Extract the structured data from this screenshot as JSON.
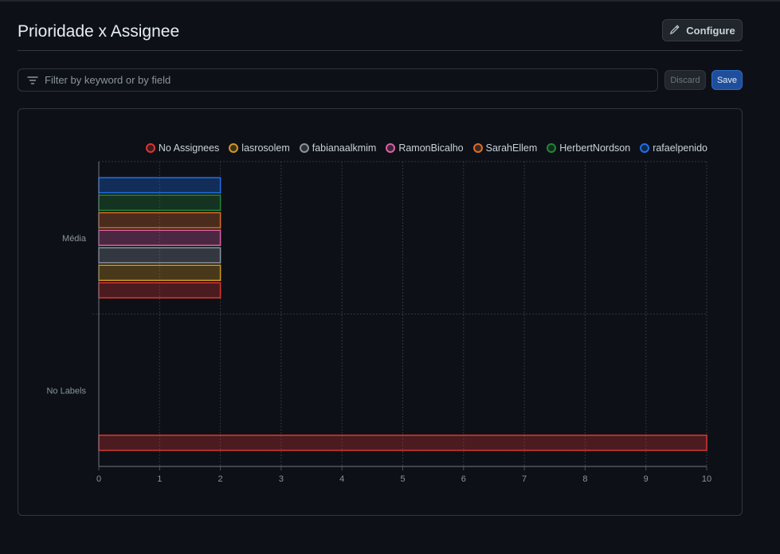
{
  "header": {
    "title": "Prioridade x Assignee",
    "configure_label": "Configure"
  },
  "filter": {
    "placeholder": "Filter by keyword or by field",
    "value": ""
  },
  "actions": {
    "discard_label": "Discard",
    "save_label": "Save"
  },
  "chart_data": {
    "type": "bar",
    "orientation": "horizontal",
    "stacked": false,
    "categories": [
      "Média",
      "No Labels"
    ],
    "series": [
      {
        "name": "No Assignees",
        "color": "#da3633",
        "values": [
          2,
          10
        ]
      },
      {
        "name": "lasrosolem",
        "color": "#d29922",
        "values": [
          2,
          0
        ]
      },
      {
        "name": "fabianaalkmim",
        "color": "#8b949e",
        "values": [
          2,
          0
        ]
      },
      {
        "name": "RamonBicalho",
        "color": "#db61a2",
        "values": [
          2,
          0
        ]
      },
      {
        "name": "SarahEllem",
        "color": "#db6d28",
        "values": [
          2,
          0
        ]
      },
      {
        "name": "HerbertNordson",
        "color": "#238636",
        "values": [
          2,
          0
        ]
      },
      {
        "name": "rafaelpenido",
        "color": "#1f6feb",
        "values": [
          2,
          0
        ]
      }
    ],
    "xlim": [
      0,
      10
    ],
    "xticks": [
      0,
      1,
      2,
      3,
      4,
      5,
      6,
      7,
      8,
      9,
      10
    ],
    "grid": true,
    "legend": "top-right"
  }
}
